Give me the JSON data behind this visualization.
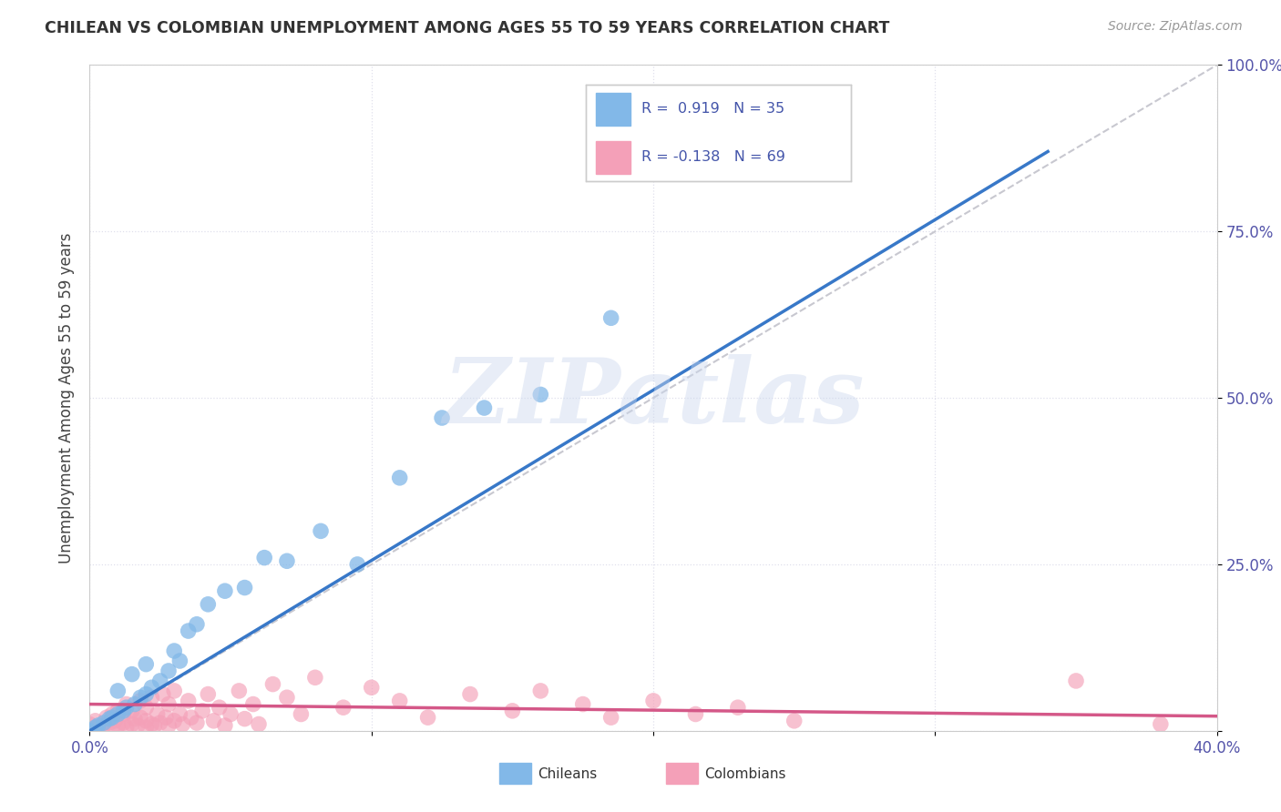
{
  "title": "CHILEAN VS COLOMBIAN UNEMPLOYMENT AMONG AGES 55 TO 59 YEARS CORRELATION CHART",
  "source": "Source: ZipAtlas.com",
  "ylabel": "Unemployment Among Ages 55 to 59 years",
  "xlim": [
    0.0,
    0.4
  ],
  "ylim": [
    0.0,
    1.0
  ],
  "chilean_color": "#82b8e8",
  "colombian_color": "#f4a0b8",
  "chilean_line_color": "#3878c8",
  "colombian_line_color": "#d45888",
  "ref_line_color": "#c8c8d0",
  "watermark": "ZIPatlas",
  "chilean_R": 0.919,
  "chilean_N": 35,
  "colombian_R": -0.138,
  "colombian_N": 69,
  "legend_label1": "Chileans",
  "legend_label2": "Colombians",
  "x_chile": [
    0.0,
    0.002,
    0.003,
    0.005,
    0.007,
    0.008,
    0.01,
    0.01,
    0.012,
    0.013,
    0.015,
    0.016,
    0.018,
    0.02,
    0.02,
    0.022,
    0.025,
    0.028,
    0.03,
    0.032,
    0.035,
    0.038,
    0.042,
    0.048,
    0.055,
    0.062,
    0.07,
    0.082,
    0.095,
    0.11,
    0.125,
    0.14,
    0.16,
    0.185,
    0.22
  ],
  "y_chile": [
    0.0,
    0.005,
    0.008,
    0.012,
    0.018,
    0.02,
    0.025,
    0.06,
    0.03,
    0.035,
    0.085,
    0.04,
    0.05,
    0.055,
    0.1,
    0.065,
    0.075,
    0.09,
    0.12,
    0.105,
    0.15,
    0.16,
    0.19,
    0.21,
    0.215,
    0.26,
    0.255,
    0.3,
    0.25,
    0.38,
    0.47,
    0.485,
    0.505,
    0.62,
    0.87
  ],
  "x_col": [
    0.0,
    0.002,
    0.003,
    0.005,
    0.006,
    0.007,
    0.008,
    0.008,
    0.009,
    0.01,
    0.01,
    0.012,
    0.012,
    0.013,
    0.013,
    0.015,
    0.015,
    0.016,
    0.017,
    0.018,
    0.018,
    0.02,
    0.02,
    0.02,
    0.022,
    0.022,
    0.023,
    0.024,
    0.025,
    0.026,
    0.027,
    0.028,
    0.028,
    0.03,
    0.03,
    0.032,
    0.033,
    0.035,
    0.036,
    0.038,
    0.04,
    0.042,
    0.044,
    0.046,
    0.048,
    0.05,
    0.053,
    0.055,
    0.058,
    0.06,
    0.065,
    0.07,
    0.075,
    0.08,
    0.09,
    0.1,
    0.11,
    0.12,
    0.135,
    0.15,
    0.16,
    0.175,
    0.185,
    0.2,
    0.215,
    0.23,
    0.25,
    0.35,
    0.38
  ],
  "y_col": [
    0.01,
    0.015,
    0.005,
    0.008,
    0.02,
    0.012,
    0.025,
    0.005,
    0.015,
    0.008,
    0.03,
    0.012,
    0.025,
    0.005,
    0.04,
    0.01,
    0.03,
    0.018,
    0.008,
    0.02,
    0.045,
    0.005,
    0.015,
    0.035,
    0.01,
    0.05,
    0.008,
    0.025,
    0.012,
    0.055,
    0.02,
    0.008,
    0.04,
    0.015,
    0.06,
    0.025,
    0.01,
    0.045,
    0.02,
    0.012,
    0.03,
    0.055,
    0.015,
    0.035,
    0.008,
    0.025,
    0.06,
    0.018,
    0.04,
    0.01,
    0.07,
    0.05,
    0.025,
    0.08,
    0.035,
    0.065,
    0.045,
    0.02,
    0.055,
    0.03,
    0.06,
    0.04,
    0.02,
    0.045,
    0.025,
    0.035,
    0.015,
    0.075,
    0.01
  ],
  "chile_trend_x": [
    0.0,
    0.34
  ],
  "chile_trend_y": [
    0.0,
    0.87
  ],
  "col_trend_x": [
    0.0,
    0.4
  ],
  "col_trend_y": [
    0.04,
    0.022
  ]
}
